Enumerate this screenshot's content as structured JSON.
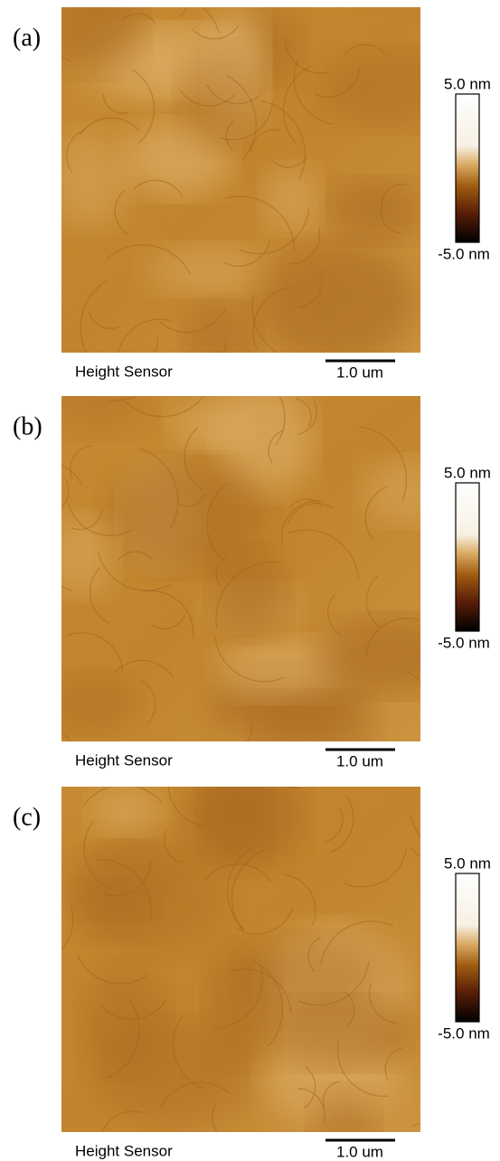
{
  "panels": [
    {
      "label": "(a)",
      "caption": "Height Sensor",
      "scale_bar": "1.0 um",
      "colorbar_max": "5.0 nm",
      "colorbar_min": "-5.0 nm"
    },
    {
      "label": "(b)",
      "caption": "Height Sensor",
      "scale_bar": "1.0 um",
      "colorbar_max": "5.0 nm",
      "colorbar_min": "-5.0 nm"
    },
    {
      "label": "(c)",
      "caption": "Height Sensor",
      "scale_bar": "1.0 um",
      "colorbar_max": "5.0 nm",
      "colorbar_min": "-5.0 nm"
    }
  ]
}
